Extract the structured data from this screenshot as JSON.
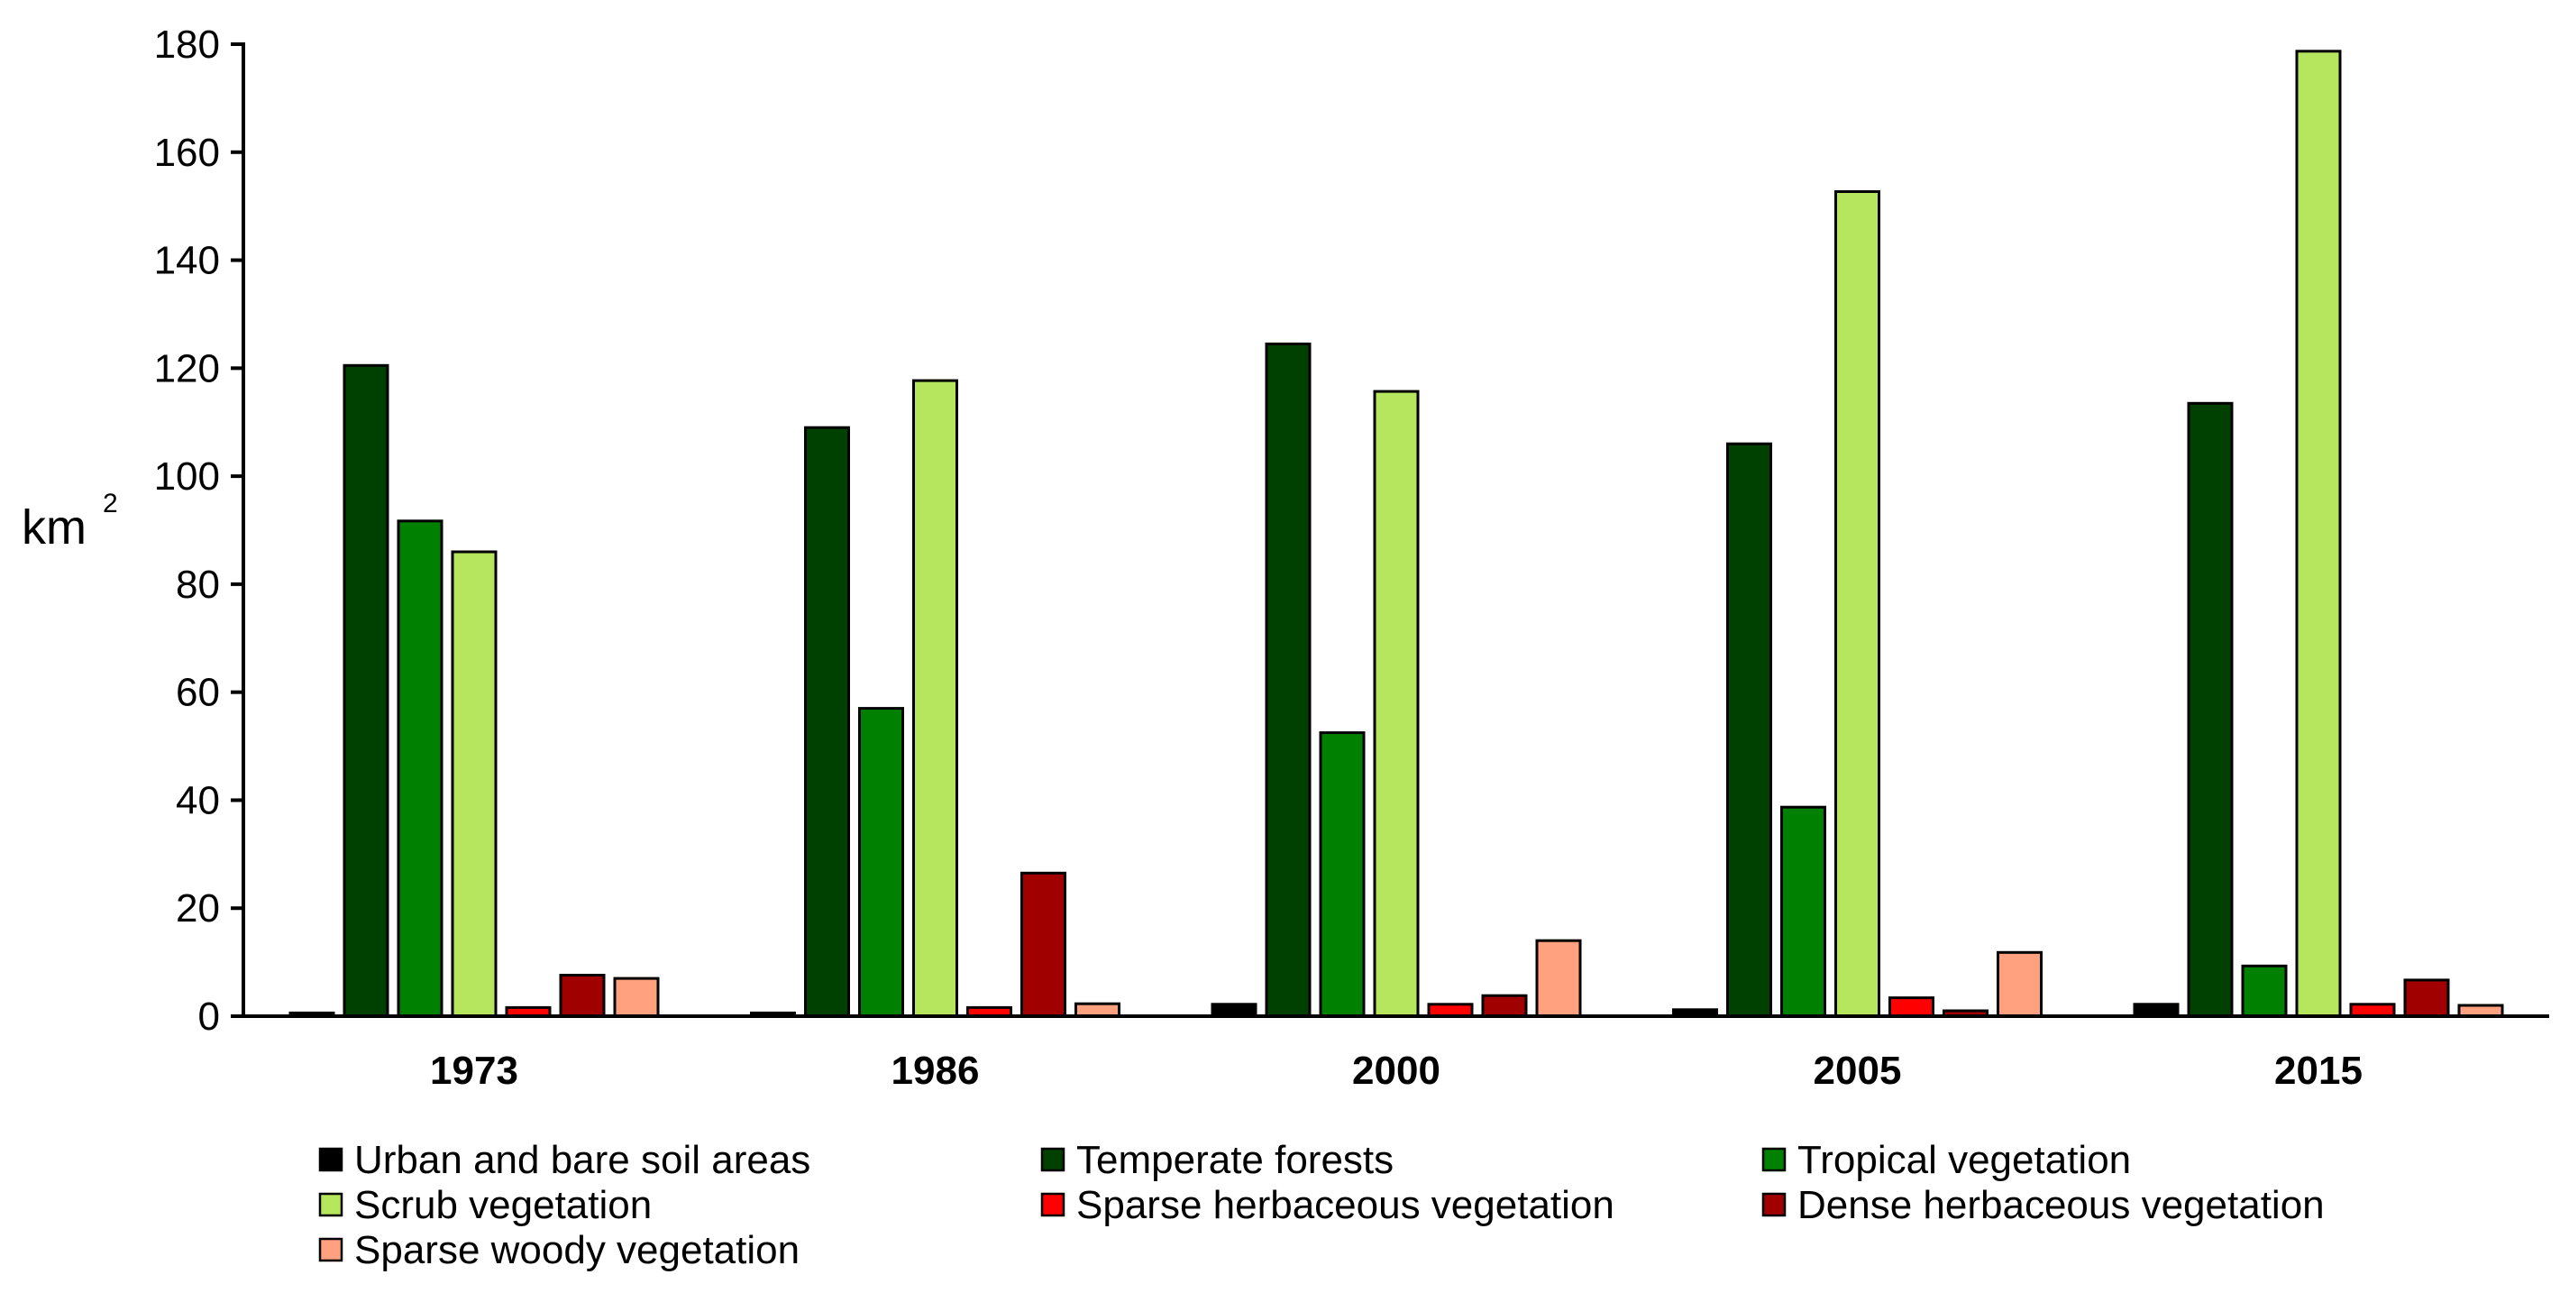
{
  "chart_data": {
    "type": "bar",
    "title": "",
    "xlabel": "",
    "ylabel": "km",
    "ylabel_superscript": "2",
    "ylim": [
      0,
      180
    ],
    "yticks": [
      "0",
      "20",
      "40",
      "60",
      "80",
      "100",
      "120",
      "140",
      "160",
      "180"
    ],
    "categories": [
      "1973",
      "1986",
      "2000",
      "2005",
      "2015"
    ],
    "legend_position": "bottom",
    "series": [
      {
        "name": "Urban and bare soil areas",
        "color": "#000000",
        "values": [
          0.6,
          0.6,
          2.2,
          1.2,
          2.2
        ]
      },
      {
        "name": "Temperate forests",
        "color": "#004000",
        "values": [
          120.5,
          109.0,
          124.5,
          106.0,
          113.5
        ]
      },
      {
        "name": "Tropical vegetation",
        "color": "#008000",
        "values": [
          91.7,
          57.0,
          52.5,
          38.7,
          9.3
        ]
      },
      {
        "name": "Scrub vegetation",
        "color": "#b6e65e",
        "values": [
          86.0,
          117.7,
          115.7,
          152.7,
          178.7
        ]
      },
      {
        "name": "Sparse herbaceous vegetation",
        "color": "#ff0000",
        "values": [
          1.6,
          1.6,
          2.2,
          3.4,
          2.2
        ]
      },
      {
        "name": "Dense herbaceous vegetation",
        "color": "#a00000",
        "values": [
          7.6,
          26.5,
          3.8,
          1.0,
          6.7
        ]
      },
      {
        "name": "Sparse woody vegetation",
        "color": "#ffa07f",
        "values": [
          7.0,
          2.3,
          14.0,
          11.8,
          2.0
        ]
      }
    ]
  }
}
